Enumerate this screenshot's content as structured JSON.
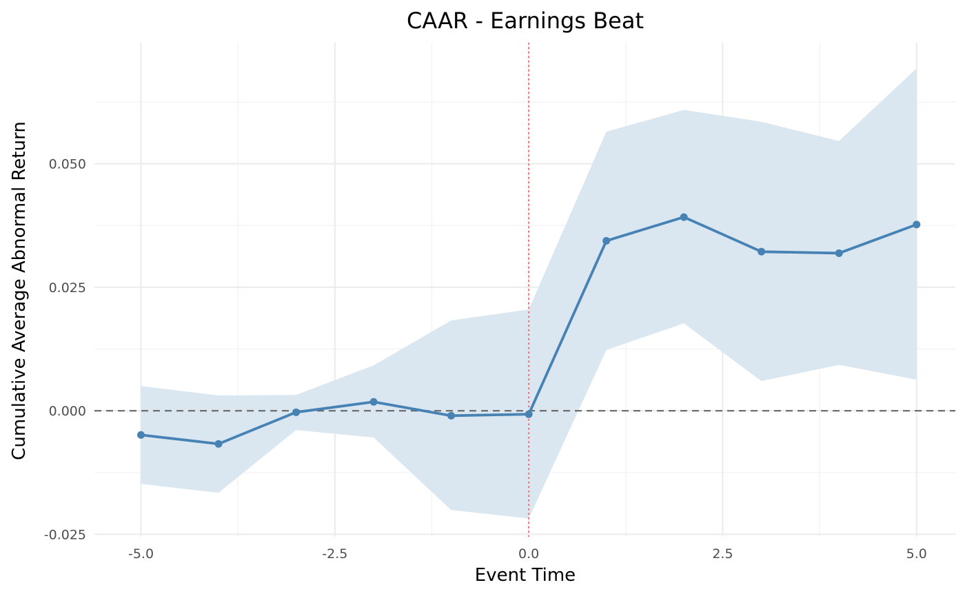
{
  "chart_data": {
    "type": "line",
    "title": "CAAR - Earnings Beat",
    "xlabel": "Event Time",
    "ylabel": "Cumulative Average Abnormal Return",
    "xlim": [
      -5.6,
      5.5
    ],
    "ylim": [
      -0.0255,
      0.0745
    ],
    "x_ticks": [
      -5.0,
      -2.5,
      0.0,
      2.5,
      5.0
    ],
    "x_tick_labels": [
      "-5.0",
      "-2.5",
      "0.0",
      "2.5",
      "5.0"
    ],
    "y_ticks": [
      -0.025,
      0.0,
      0.025,
      0.05
    ],
    "y_tick_labels": [
      "-0.025",
      "0.000",
      "0.025",
      "0.050"
    ],
    "grid": true,
    "legend": "none",
    "series": [
      {
        "x": [
          -5,
          -4,
          -3,
          -2,
          -1,
          0,
          1,
          2,
          3,
          4,
          5
        ],
        "values": [
          -0.0049,
          -0.0067,
          -0.0003,
          0.0018,
          -0.001,
          -0.0007,
          0.0344,
          0.0392,
          0.0322,
          0.0319,
          0.0377
        ],
        "lower": [
          -0.0148,
          -0.0166,
          -0.0039,
          -0.0054,
          -0.0201,
          -0.0218,
          0.0123,
          0.0177,
          0.006,
          0.0093,
          0.0063
        ],
        "upper": [
          0.005,
          0.0031,
          0.0032,
          0.0092,
          0.0183,
          0.0205,
          0.0565,
          0.0609,
          0.0585,
          0.0546,
          0.0693
        ],
        "color": "#4682b4",
        "band_color": "#dae6f0"
      }
    ],
    "reference_lines": [
      {
        "orientation": "horizontal",
        "value": 0.0,
        "style": "dashed",
        "color": "#666666"
      },
      {
        "orientation": "vertical",
        "value": 0.0,
        "style": "dotted",
        "color": "#ef6f6f"
      }
    ]
  }
}
